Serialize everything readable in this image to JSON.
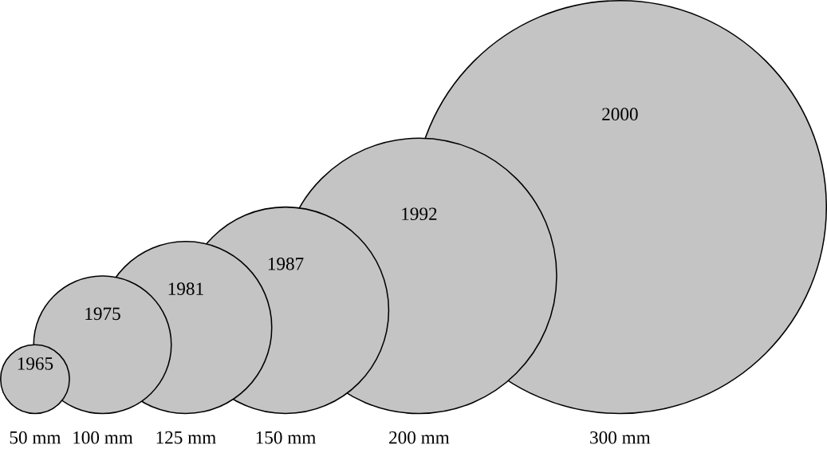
{
  "chart_data": {
    "type": "other",
    "categories": [
      "1965",
      "1975",
      "1981",
      "1987",
      "1992",
      "2000"
    ],
    "values": [
      50,
      100,
      125,
      150,
      200,
      300
    ],
    "value_labels": [
      "50 mm",
      "100 mm",
      "125 mm",
      "150 mm",
      "200 mm",
      "300 mm"
    ],
    "color": "#c4c4c4"
  }
}
